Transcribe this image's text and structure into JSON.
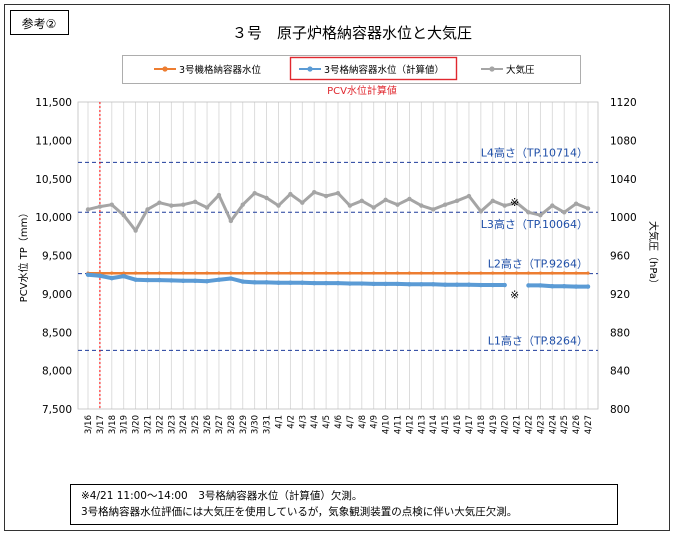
{
  "ref_label": "参考②",
  "chart_data": {
    "type": "line",
    "title": "３号　原子炉格納容器水位と大気圧",
    "subtitle": "PCV水位計算値",
    "ylabel": "PCV水位 TP（mm）",
    "y2label": "大気圧（hPa）",
    "ylim": [
      7500,
      11500
    ],
    "y2lim": [
      800,
      1120
    ],
    "yticks": [
      "7,500",
      "8,000",
      "8,500",
      "9,000",
      "9,500",
      "10,000",
      "10,500",
      "11,000",
      "11,500"
    ],
    "y2ticks": [
      "800",
      "840",
      "880",
      "920",
      "960",
      "1000",
      "1040",
      "1080",
      "1120"
    ],
    "grid": true,
    "legend_position": "top",
    "categories": [
      "3/16",
      "3/17",
      "3/18",
      "3/19",
      "3/20",
      "3/21",
      "3/22",
      "3/23",
      "3/24",
      "3/25",
      "3/26",
      "3/27",
      "3/28",
      "3/29",
      "3/30",
      "3/31",
      "4/1",
      "4/2",
      "4/3",
      "4/4",
      "4/5",
      "4/6",
      "4/7",
      "4/8",
      "4/9",
      "4/10",
      "4/11",
      "4/12",
      "4/13",
      "4/14",
      "4/15",
      "4/16",
      "4/17",
      "4/18",
      "4/19",
      "4/20",
      "4/21",
      "4/22",
      "4/23",
      "4/24",
      "4/25",
      "4/26",
      "4/27"
    ],
    "series": [
      {
        "name": "3号機格納容器水位",
        "color": "#ed7d31",
        "axis": "left",
        "values": [
          9270,
          9270,
          9270,
          9270,
          9270,
          9270,
          9270,
          9270,
          9270,
          9270,
          9270,
          9270,
          9270,
          9270,
          9270,
          9270,
          9270,
          9270,
          9270,
          9270,
          9270,
          9270,
          9270,
          9270,
          9270,
          9270,
          9270,
          9270,
          9270,
          9270,
          9270,
          9270,
          9270,
          9270,
          9270,
          9270,
          9270,
          9270,
          9270,
          9270,
          9270,
          9270,
          9270
        ]
      },
      {
        "name": "3号格納容器水位（計算値）",
        "color": "#5b9bd5",
        "axis": "left",
        "values": [
          9250,
          9235,
          9205,
          9230,
          9185,
          9180,
          9180,
          9175,
          9170,
          9170,
          9165,
          9185,
          9200,
          9160,
          9150,
          9150,
          9145,
          9145,
          9145,
          9140,
          9140,
          9140,
          9135,
          9135,
          9130,
          9130,
          9130,
          9125,
          9125,
          9125,
          9120,
          9120,
          9120,
          9115,
          9115,
          9115,
          null,
          9110,
          9110,
          9100,
          9100,
          9095,
          9095
        ]
      },
      {
        "name": "大気圧",
        "color": "#a5a5a5",
        "axis": "right",
        "values": [
          1008,
          1011,
          1013,
          1002,
          986,
          1008,
          1015,
          1012,
          1013,
          1016,
          1010,
          1023,
          996,
          1013,
          1025,
          1020,
          1012,
          1024,
          1015,
          1026,
          1022,
          1025,
          1012,
          1017,
          1010,
          1018,
          1013,
          1019,
          1012,
          1008,
          1013,
          1017,
          1022,
          1006,
          1017,
          1012,
          1015,
          1005,
          1002,
          1012,
          1005,
          1014,
          1009
        ]
      }
    ],
    "reference_lines": [
      {
        "label": "L4高さ（TP.10714）",
        "value": 10714
      },
      {
        "label": "L3高さ（TP.10064）",
        "value": 10064
      },
      {
        "label": "L2高さ（TP.9264）",
        "value": 9264
      },
      {
        "label": "L1高さ（TP.8264）",
        "value": 8264
      }
    ],
    "annotations": [
      {
        "text": "※",
        "x": "4/21",
        "y": 10200
      },
      {
        "text": "※",
        "x": "4/21",
        "y": 8990
      }
    ],
    "vertical_marker": {
      "x": "3/17",
      "color": "#ff0000"
    }
  },
  "footnote": {
    "line1": "※4/21 11:00〜14:00　3号格納容器水位（計算値）欠測。",
    "line2": "3号格納容器水位評価には大気圧を使用しているが，気象観測装置の点検に伴い大気圧欠測。"
  }
}
